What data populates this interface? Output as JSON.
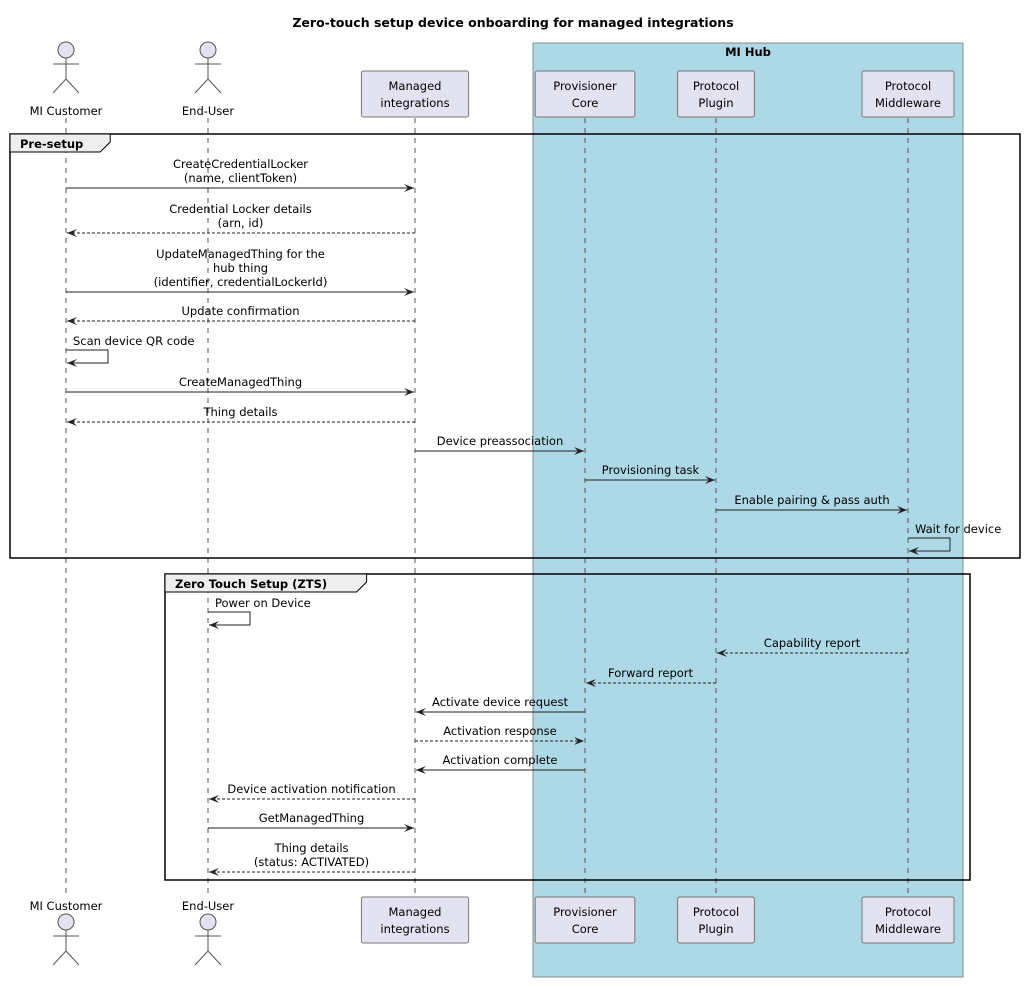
{
  "title": "Zero-touch setup device onboarding for managed integrations",
  "colors": {
    "hub_background": "#ADD8E6",
    "participant_fill": "#E2E2F0",
    "group_header_fill": "#EEEEEE"
  },
  "hub": {
    "label": "MI Hub"
  },
  "participants": [
    {
      "id": "customer",
      "kind": "actor",
      "lines": [
        "MI Customer"
      ]
    },
    {
      "id": "enduser",
      "kind": "actor",
      "lines": [
        "End-User"
      ]
    },
    {
      "id": "mi",
      "kind": "queue",
      "lines": [
        "Managed",
        "integrations"
      ]
    },
    {
      "id": "core",
      "kind": "participant",
      "lines": [
        "Provisioner",
        "Core"
      ]
    },
    {
      "id": "plugin",
      "kind": "participant",
      "lines": [
        "Protocol",
        "Plugin"
      ]
    },
    {
      "id": "middleware",
      "kind": "participant",
      "lines": [
        "Protocol",
        "Middleware"
      ]
    }
  ],
  "groups": [
    {
      "label": "Pre-setup"
    },
    {
      "label": "Zero Touch Setup (ZTS)"
    }
  ],
  "messages": [
    {
      "from": 0,
      "to": 2,
      "dashed": false,
      "lines": [
        "CreateCredentialLocker",
        "(name, clientToken)"
      ]
    },
    {
      "from": 2,
      "to": 0,
      "dashed": true,
      "lines": [
        "Credential Locker details",
        "(arn, id)"
      ]
    },
    {
      "from": 0,
      "to": 2,
      "dashed": false,
      "lines": [
        "UpdateManagedThing for the",
        "hub thing",
        "(identifier, credentialLockerId)"
      ]
    },
    {
      "from": 2,
      "to": 0,
      "dashed": true,
      "lines": [
        "Update confirmation"
      ]
    },
    {
      "from": 0,
      "to": 0,
      "dashed": false,
      "lines": [
        "Scan device QR code"
      ]
    },
    {
      "from": 0,
      "to": 2,
      "dashed": false,
      "lines": [
        "CreateManagedThing"
      ]
    },
    {
      "from": 2,
      "to": 0,
      "dashed": true,
      "lines": [
        "Thing details"
      ]
    },
    {
      "from": 2,
      "to": 3,
      "dashed": false,
      "lines": [
        "Device preassociation"
      ]
    },
    {
      "from": 3,
      "to": 4,
      "dashed": false,
      "lines": [
        "Provisioning task"
      ]
    },
    {
      "from": 4,
      "to": 5,
      "dashed": false,
      "lines": [
        "Enable pairing & pass auth"
      ]
    },
    {
      "from": 5,
      "to": 5,
      "dashed": false,
      "lines": [
        "Wait for device"
      ]
    },
    {
      "from": 1,
      "to": 1,
      "dashed": false,
      "lines": [
        "Power on Device"
      ]
    },
    {
      "from": 5,
      "to": 4,
      "dashed": true,
      "lines": [
        "Capability report"
      ]
    },
    {
      "from": 4,
      "to": 3,
      "dashed": true,
      "lines": [
        "Forward report"
      ]
    },
    {
      "from": 3,
      "to": 2,
      "dashed": false,
      "lines": [
        "Activate device request"
      ]
    },
    {
      "from": 2,
      "to": 3,
      "dashed": true,
      "lines": [
        "Activation response"
      ]
    },
    {
      "from": 3,
      "to": 2,
      "dashed": false,
      "lines": [
        "Activation complete"
      ]
    },
    {
      "from": 2,
      "to": 1,
      "dashed": true,
      "lines": [
        "Device activation notification"
      ]
    },
    {
      "from": 1,
      "to": 2,
      "dashed": false,
      "lines": [
        "GetManagedThing"
      ]
    },
    {
      "from": 2,
      "to": 1,
      "dashed": true,
      "lines": [
        "Thing details",
        "(status: ACTIVATED)"
      ]
    }
  ]
}
